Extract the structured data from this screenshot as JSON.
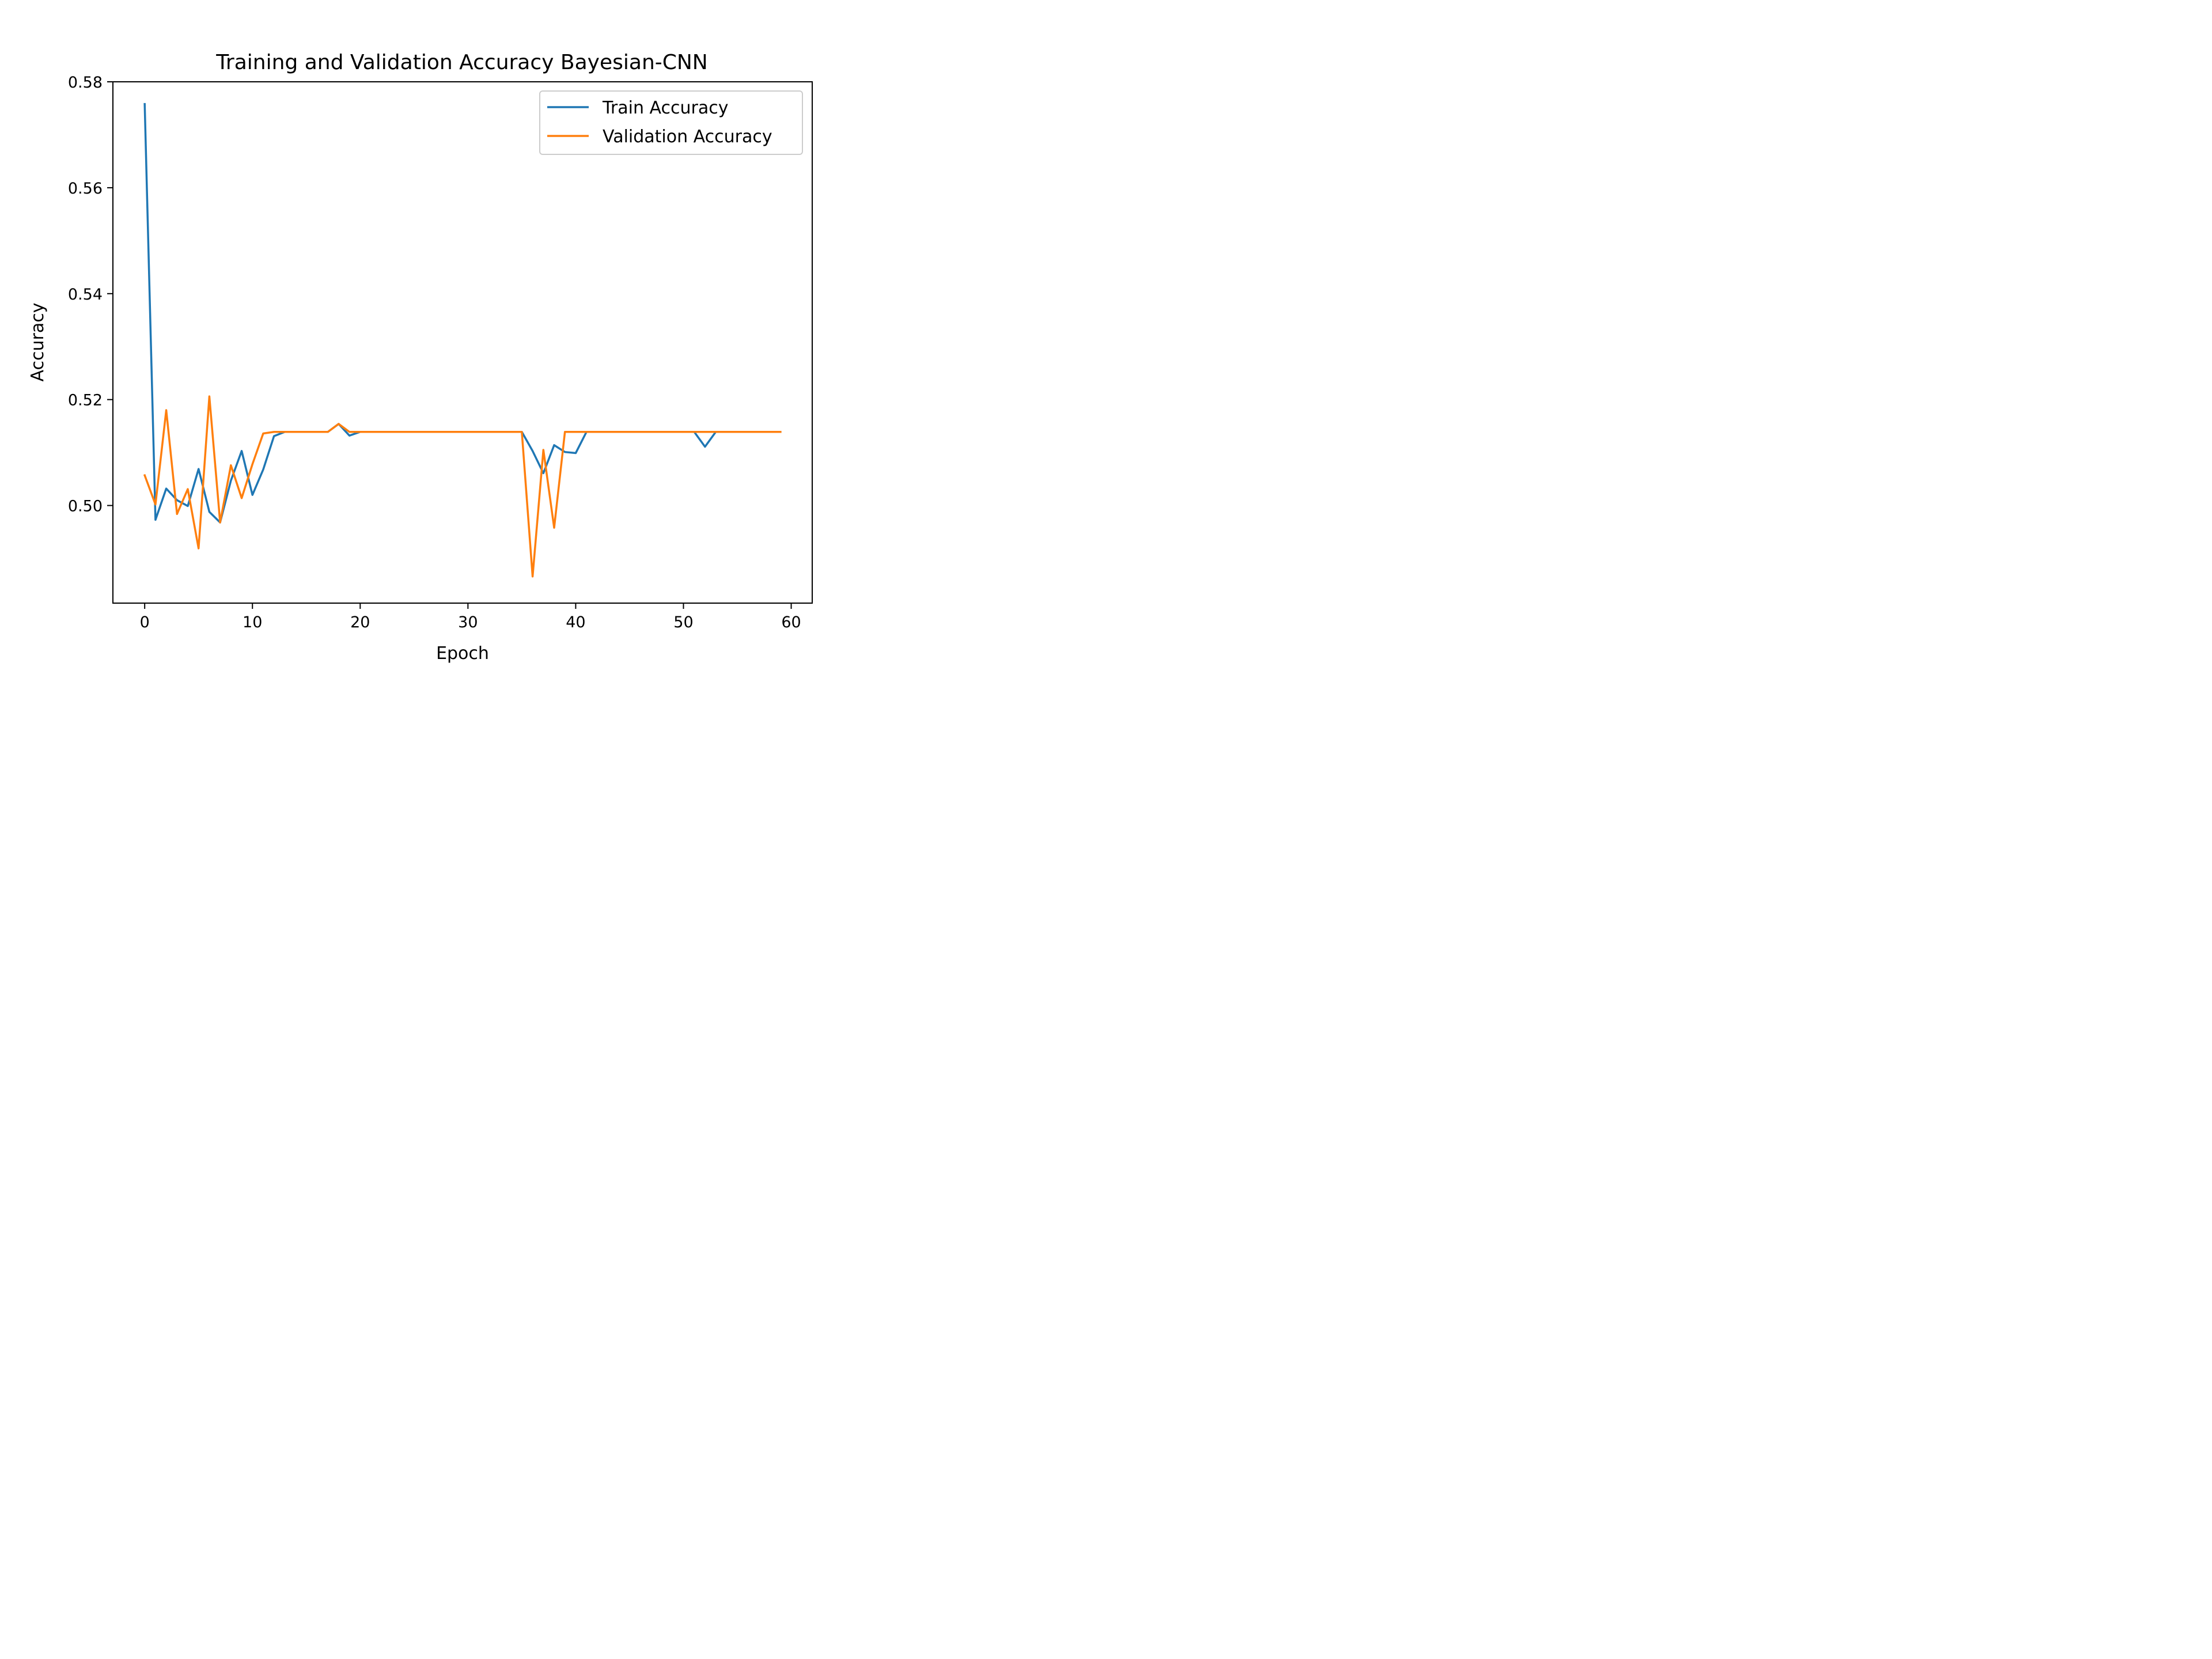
{
  "chart_data": {
    "type": "line",
    "title": "Training and Validation Accuracy Bayesian-CNN",
    "xlabel": "Epoch",
    "ylabel": "Accuracy",
    "xlim": [
      -2.95,
      61.95
    ],
    "ylim": [
      0.48157,
      0.58
    ],
    "xticks": [
      0,
      10,
      20,
      30,
      40,
      50,
      60
    ],
    "yticks": [
      0.5,
      0.52,
      0.54,
      0.56,
      0.58
    ],
    "ytick_labels": [
      "0.50",
      "0.52",
      "0.54",
      "0.56",
      "0.58"
    ],
    "grid": false,
    "legend_position": "top-right",
    "x": [
      0,
      1,
      2,
      3,
      4,
      5,
      6,
      7,
      8,
      9,
      10,
      11,
      12,
      13,
      14,
      15,
      16,
      17,
      18,
      19,
      20,
      21,
      22,
      23,
      24,
      25,
      26,
      27,
      28,
      29,
      30,
      31,
      32,
      33,
      34,
      35,
      36,
      37,
      38,
      39,
      40,
      41,
      42,
      43,
      44,
      45,
      46,
      47,
      48,
      49,
      50,
      51,
      52,
      53,
      54,
      55,
      56,
      57,
      58,
      59
    ],
    "series": [
      {
        "name": "Train Accuracy",
        "color": "#1f77b4",
        "values": [
          0.5758,
          0.4973,
          0.5032,
          0.501,
          0.4999,
          0.5069,
          0.4988,
          0.4968,
          0.5047,
          0.5103,
          0.502,
          0.5068,
          0.5131,
          0.5139,
          0.5139,
          0.5139,
          0.5139,
          0.5139,
          0.5154,
          0.5132,
          0.5139,
          0.5139,
          0.5139,
          0.5139,
          0.5139,
          0.5139,
          0.5139,
          0.5139,
          0.5139,
          0.5139,
          0.5139,
          0.5139,
          0.5139,
          0.5139,
          0.5139,
          0.5139,
          0.5103,
          0.5061,
          0.5114,
          0.5101,
          0.5099,
          0.5139,
          0.5139,
          0.5139,
          0.5139,
          0.5139,
          0.5139,
          0.5139,
          0.5139,
          0.5139,
          0.5139,
          0.5139,
          0.5111,
          0.5139,
          0.5139,
          0.5139,
          0.5139,
          0.5139,
          0.5139,
          0.5139
        ]
      },
      {
        "name": "Validation Accuracy",
        "color": "#ff7f0e",
        "values": [
          0.5057,
          0.5002,
          0.518,
          0.4984,
          0.5031,
          0.4919,
          0.5206,
          0.4968,
          0.5076,
          0.5014,
          0.5078,
          0.5136,
          0.5139,
          0.5139,
          0.5139,
          0.5139,
          0.5139,
          0.5139,
          0.5154,
          0.5139,
          0.5139,
          0.5139,
          0.5139,
          0.5139,
          0.5139,
          0.5139,
          0.5139,
          0.5139,
          0.5139,
          0.5139,
          0.5139,
          0.5139,
          0.5139,
          0.5139,
          0.5139,
          0.5139,
          0.4866,
          0.5105,
          0.4958,
          0.5139,
          0.5139,
          0.5139,
          0.5139,
          0.5139,
          0.5139,
          0.5139,
          0.5139,
          0.5139,
          0.5139,
          0.5139,
          0.5139,
          0.5139,
          0.5139,
          0.5139,
          0.5139,
          0.5139,
          0.5139,
          0.5139,
          0.5139,
          0.5139
        ]
      }
    ]
  }
}
